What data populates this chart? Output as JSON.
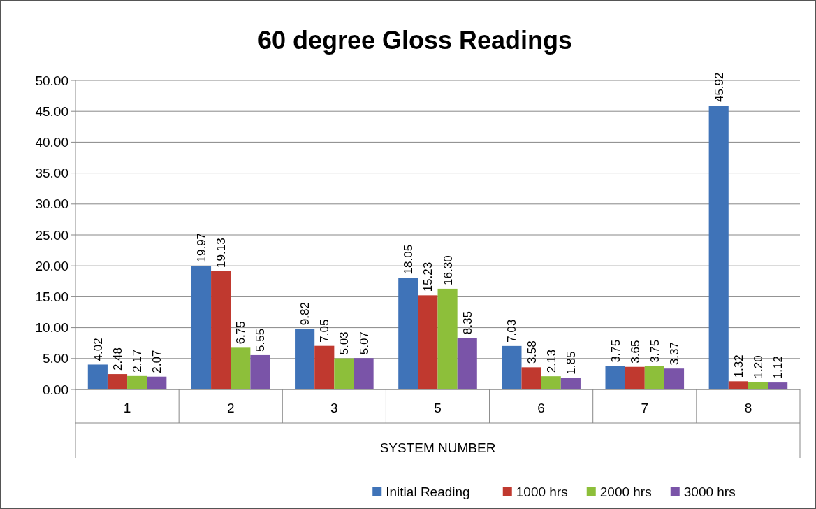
{
  "chart_data": {
    "type": "bar",
    "title": "60 degree Gloss Readings",
    "xlabel": "SYSTEM NUMBER",
    "categories": [
      "1",
      "2",
      "3",
      "5",
      "6",
      "7",
      "8"
    ],
    "series": [
      {
        "name": "Initial Reading",
        "color": "#3f73b8",
        "values": [
          4.02,
          19.97,
          9.82,
          18.05,
          7.03,
          3.75,
          45.92
        ],
        "value_labels": [
          "4.02",
          "19.97",
          "9.82",
          "18.05",
          "7.03",
          "3.75",
          "45.92"
        ]
      },
      {
        "name": "1000 hrs",
        "color": "#c0392f",
        "values": [
          2.48,
          19.13,
          7.05,
          15.23,
          3.58,
          3.65,
          1.32
        ],
        "value_labels": [
          "2.48",
          "19.13",
          "7.05",
          "15.23",
          "3.58",
          "3.65",
          "1.32"
        ]
      },
      {
        "name": "2000 hrs",
        "color": "#8dbf3a",
        "values": [
          2.17,
          6.75,
          5.03,
          16.3,
          2.13,
          3.75,
          1.2
        ],
        "value_labels": [
          "2.17",
          "6.75",
          "5.03",
          "16.30",
          "2.13",
          "3.75",
          "1.20"
        ]
      },
      {
        "name": "3000 hrs",
        "color": "#7a54a8",
        "values": [
          2.07,
          5.55,
          5.07,
          8.35,
          1.85,
          3.37,
          1.12
        ],
        "value_labels": [
          "2.07",
          "5.55",
          "5.07",
          "8.35",
          "1.85",
          "3.37",
          "1.12"
        ]
      }
    ],
    "ylim": [
      0,
      50
    ],
    "yticks": [
      {
        "value": 0,
        "label": "0.00"
      },
      {
        "value": 5,
        "label": "5.00"
      },
      {
        "value": 10,
        "label": "10.00"
      },
      {
        "value": 15,
        "label": "15.00"
      },
      {
        "value": 20,
        "label": "20.00"
      },
      {
        "value": 25,
        "label": "25.00"
      },
      {
        "value": 30,
        "label": "30.00"
      },
      {
        "value": 35,
        "label": "35.00"
      },
      {
        "value": 40,
        "label": "40.00"
      },
      {
        "value": 45,
        "label": "45.00"
      },
      {
        "value": 50,
        "label": "50.00"
      }
    ],
    "grid": "y",
    "legend": "bottom"
  }
}
